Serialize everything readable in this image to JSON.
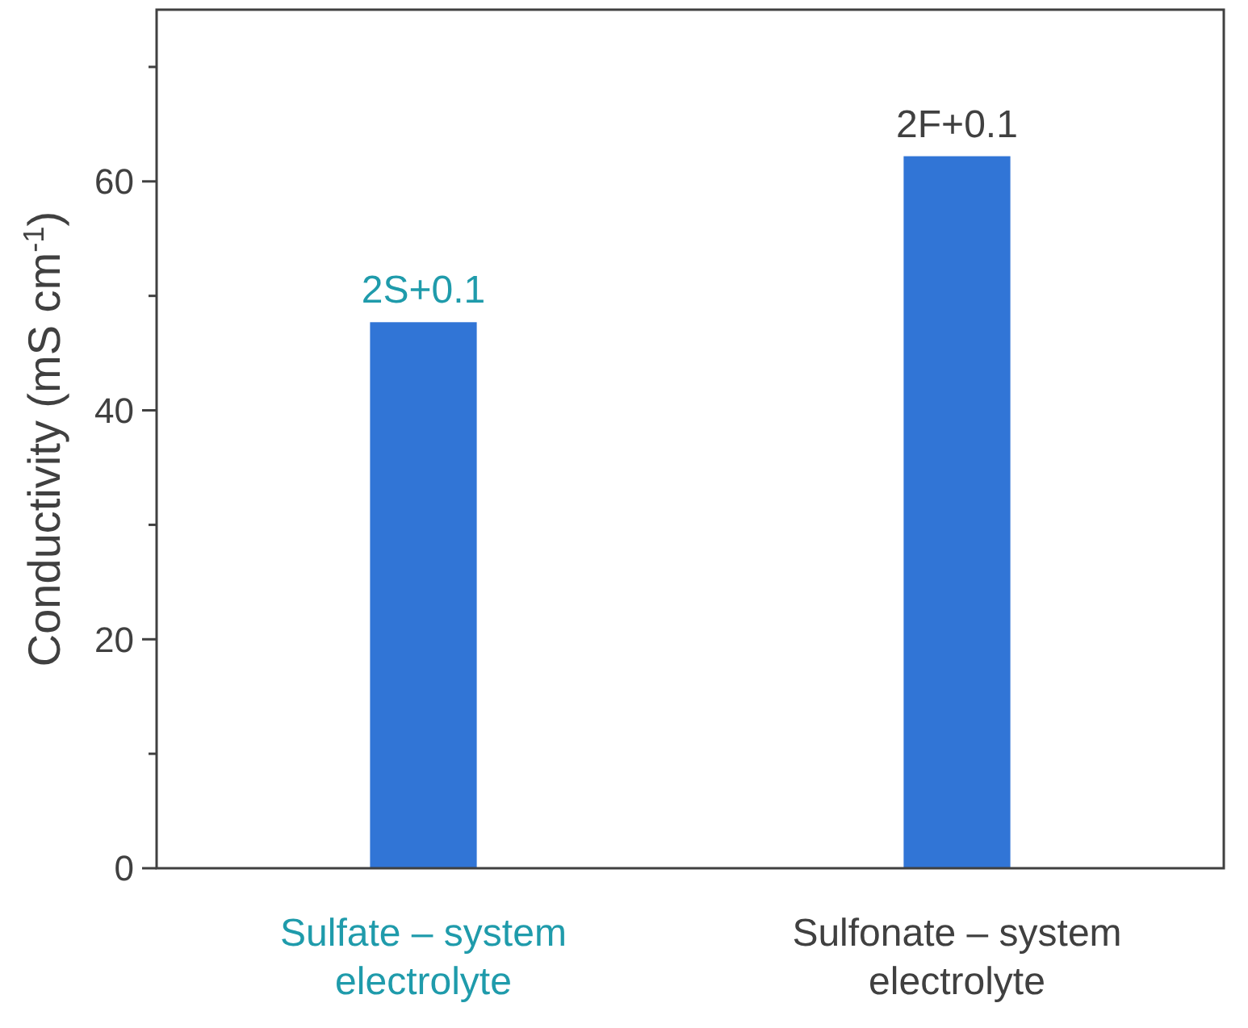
{
  "chart_data": {
    "type": "bar",
    "ylabel": "Conductivity (mS cm$^{-1}$)",
    "categories": [
      "Sulfate – system electrolyte",
      "Sulfonate – system electrolyte"
    ],
    "values": [
      47.7,
      62.2
    ],
    "color": "#3175d6",
    "ylim": [
      0,
      75
    ],
    "yticks": [
      0,
      {
        "value": 10,
        "label": null
      },
      20,
      {
        "value": 30,
        "label": null
      },
      40,
      {
        "value": 50,
        "label": null
      },
      60,
      {
        "value": 70,
        "label": null
      }
    ],
    "annotations": [
      {
        "text": "2S+0.1",
        "x": "Sulfate – system electrolyte",
        "y": 47.7
      },
      {
        "text": "2F+0.1",
        "x": "Sulfonate – system electrolyte",
        "y": 62.2
      }
    ],
    "grid": false
  }
}
